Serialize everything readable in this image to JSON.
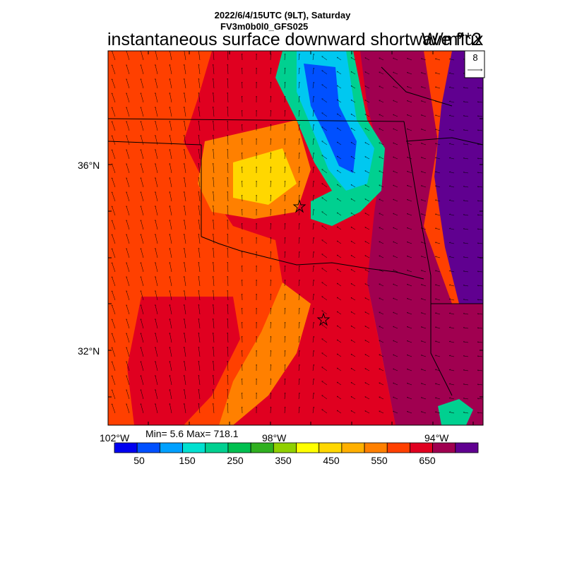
{
  "title": {
    "line1": "2022/6/4/15UTC (9LT), Saturday",
    "line2": "FV3m0b0l0_GFS025",
    "variable": "instantaneous surface downward shortwave flux",
    "units": "W/m**2"
  },
  "stats": "Min= 5.6 Max= 718.1",
  "reference_vector": {
    "label": "8"
  },
  "axes": {
    "lat_labels": [
      "36°N",
      "32°N"
    ],
    "lon_labels": [
      "102°W",
      "98°W",
      "94°W"
    ]
  },
  "colorbar": {
    "colors": [
      "#0000f0",
      "#0050ff",
      "#00a0ff",
      "#00e0d0",
      "#00d090",
      "#00c050",
      "#30b020",
      "#90d000",
      "#ffff00",
      "#ffd700",
      "#ffb000",
      "#ff8000",
      "#ff4000",
      "#e00020",
      "#a00050",
      "#600090"
    ],
    "labels": [
      "50",
      "150",
      "250",
      "350",
      "450",
      "550",
      "650"
    ]
  },
  "map_regions": [
    {
      "name": "background",
      "color": "#ff4000"
    },
    {
      "name": "central-red",
      "color": "#e00020"
    },
    {
      "name": "east-crimson",
      "color": "#a00050"
    },
    {
      "name": "far-east-purple",
      "color": "#600090"
    },
    {
      "name": "panhandle-orange",
      "color": "#ff8000"
    },
    {
      "name": "cloud-yellow",
      "color": "#ffd700"
    },
    {
      "name": "cloud-green",
      "color": "#00d090"
    },
    {
      "name": "cloud-cyan",
      "color": "#00c8f0"
    },
    {
      "name": "cloud-blue",
      "color": "#0050ff"
    }
  ]
}
